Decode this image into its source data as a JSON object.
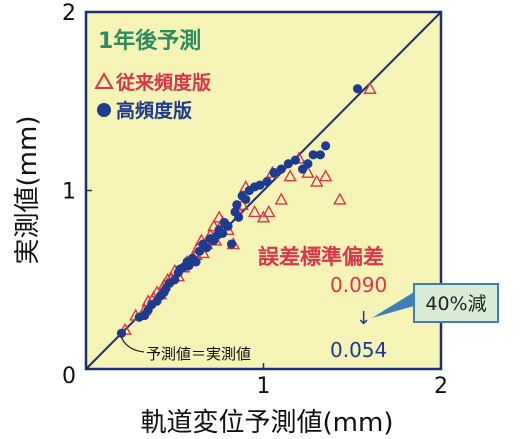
{
  "chart_data": {
    "type": "scatter",
    "title": "1年後予測",
    "xlabel": "軌道変位予測値(mm)",
    "ylabel": "実測値(mm)",
    "xlim": [
      0,
      2
    ],
    "ylim": [
      0,
      2
    ],
    "x_ticks": [
      "0",
      "1",
      "2"
    ],
    "y_ticks": [
      "0",
      "1",
      "2"
    ],
    "origin_label": "0",
    "reference_line": {
      "label": "予測値＝実測値",
      "slope": 1,
      "intercept": 0
    },
    "legend_placement": "top-left",
    "grid": false,
    "colors": {
      "background": "#f6f3b7",
      "conventional": "#d9364a",
      "high_freq": "#1d3b8f",
      "title": "#2f8a5f",
      "frame": "#1f2f6b"
    },
    "series": [
      {
        "name": "従来頻度版",
        "marker": "triangle-open",
        "points": [
          [
            0.22,
            0.22
          ],
          [
            0.28,
            0.3
          ],
          [
            0.33,
            0.33
          ],
          [
            0.35,
            0.38
          ],
          [
            0.38,
            0.4
          ],
          [
            0.4,
            0.43
          ],
          [
            0.42,
            0.42
          ],
          [
            0.44,
            0.47
          ],
          [
            0.46,
            0.5
          ],
          [
            0.48,
            0.51
          ],
          [
            0.5,
            0.55
          ],
          [
            0.52,
            0.52
          ],
          [
            0.55,
            0.57
          ],
          [
            0.57,
            0.6
          ],
          [
            0.6,
            0.62
          ],
          [
            0.62,
            0.64
          ],
          [
            0.63,
            0.68
          ],
          [
            0.65,
            0.72
          ],
          [
            0.66,
            0.65
          ],
          [
            0.68,
            0.7
          ],
          [
            0.7,
            0.75
          ],
          [
            0.72,
            0.8
          ],
          [
            0.73,
            0.72
          ],
          [
            0.75,
            0.85
          ],
          [
            0.77,
            0.82
          ],
          [
            0.8,
            0.78
          ],
          [
            0.83,
            0.7
          ],
          [
            0.85,
            0.9
          ],
          [
            0.88,
            0.92
          ],
          [
            0.9,
            1.02
          ],
          [
            0.95,
            0.88
          ],
          [
            1.0,
            0.85
          ],
          [
            1.03,
            0.88
          ],
          [
            1.05,
            1.1
          ],
          [
            1.1,
            0.95
          ],
          [
            1.15,
            1.08
          ],
          [
            1.2,
            1.18
          ],
          [
            1.25,
            1.1
          ],
          [
            1.3,
            1.05
          ],
          [
            1.35,
            1.08
          ],
          [
            1.43,
            0.95
          ],
          [
            1.6,
            1.57
          ]
        ]
      },
      {
        "name": "高頻度版",
        "marker": "circle",
        "points": [
          [
            0.2,
            0.2
          ],
          [
            0.3,
            0.29
          ],
          [
            0.33,
            0.3
          ],
          [
            0.35,
            0.33
          ],
          [
            0.37,
            0.36
          ],
          [
            0.4,
            0.38
          ],
          [
            0.42,
            0.41
          ],
          [
            0.44,
            0.43
          ],
          [
            0.45,
            0.45
          ],
          [
            0.47,
            0.48
          ],
          [
            0.5,
            0.5
          ],
          [
            0.52,
            0.54
          ],
          [
            0.53,
            0.56
          ],
          [
            0.55,
            0.57
          ],
          [
            0.57,
            0.6
          ],
          [
            0.58,
            0.58
          ],
          [
            0.6,
            0.62
          ],
          [
            0.62,
            0.6
          ],
          [
            0.64,
            0.66
          ],
          [
            0.66,
            0.7
          ],
          [
            0.68,
            0.68
          ],
          [
            0.7,
            0.73
          ],
          [
            0.72,
            0.72
          ],
          [
            0.74,
            0.75
          ],
          [
            0.75,
            0.78
          ],
          [
            0.77,
            0.76
          ],
          [
            0.78,
            0.82
          ],
          [
            0.8,
            0.8
          ],
          [
            0.82,
            0.7
          ],
          [
            0.84,
            0.88
          ],
          [
            0.85,
            0.92
          ],
          [
            0.86,
            0.85
          ],
          [
            0.88,
            0.97
          ],
          [
            0.9,
            0.95
          ],
          [
            0.92,
            1.0
          ],
          [
            0.95,
            1.02
          ],
          [
            0.98,
            1.03
          ],
          [
            1.02,
            1.05
          ],
          [
            1.06,
            1.1
          ],
          [
            1.1,
            1.12
          ],
          [
            1.14,
            1.15
          ],
          [
            1.18,
            1.17
          ],
          [
            1.22,
            1.12
          ],
          [
            1.25,
            1.15
          ],
          [
            1.28,
            1.2
          ],
          [
            1.32,
            1.2
          ],
          [
            1.35,
            1.25
          ],
          [
            1.53,
            1.57
          ]
        ]
      }
    ],
    "annotation": {
      "heading": "誤差標準偏差",
      "conventional_value": "0.090",
      "high_freq_value": "0.054",
      "arrow": "↓",
      "reduction": "40%減"
    }
  }
}
